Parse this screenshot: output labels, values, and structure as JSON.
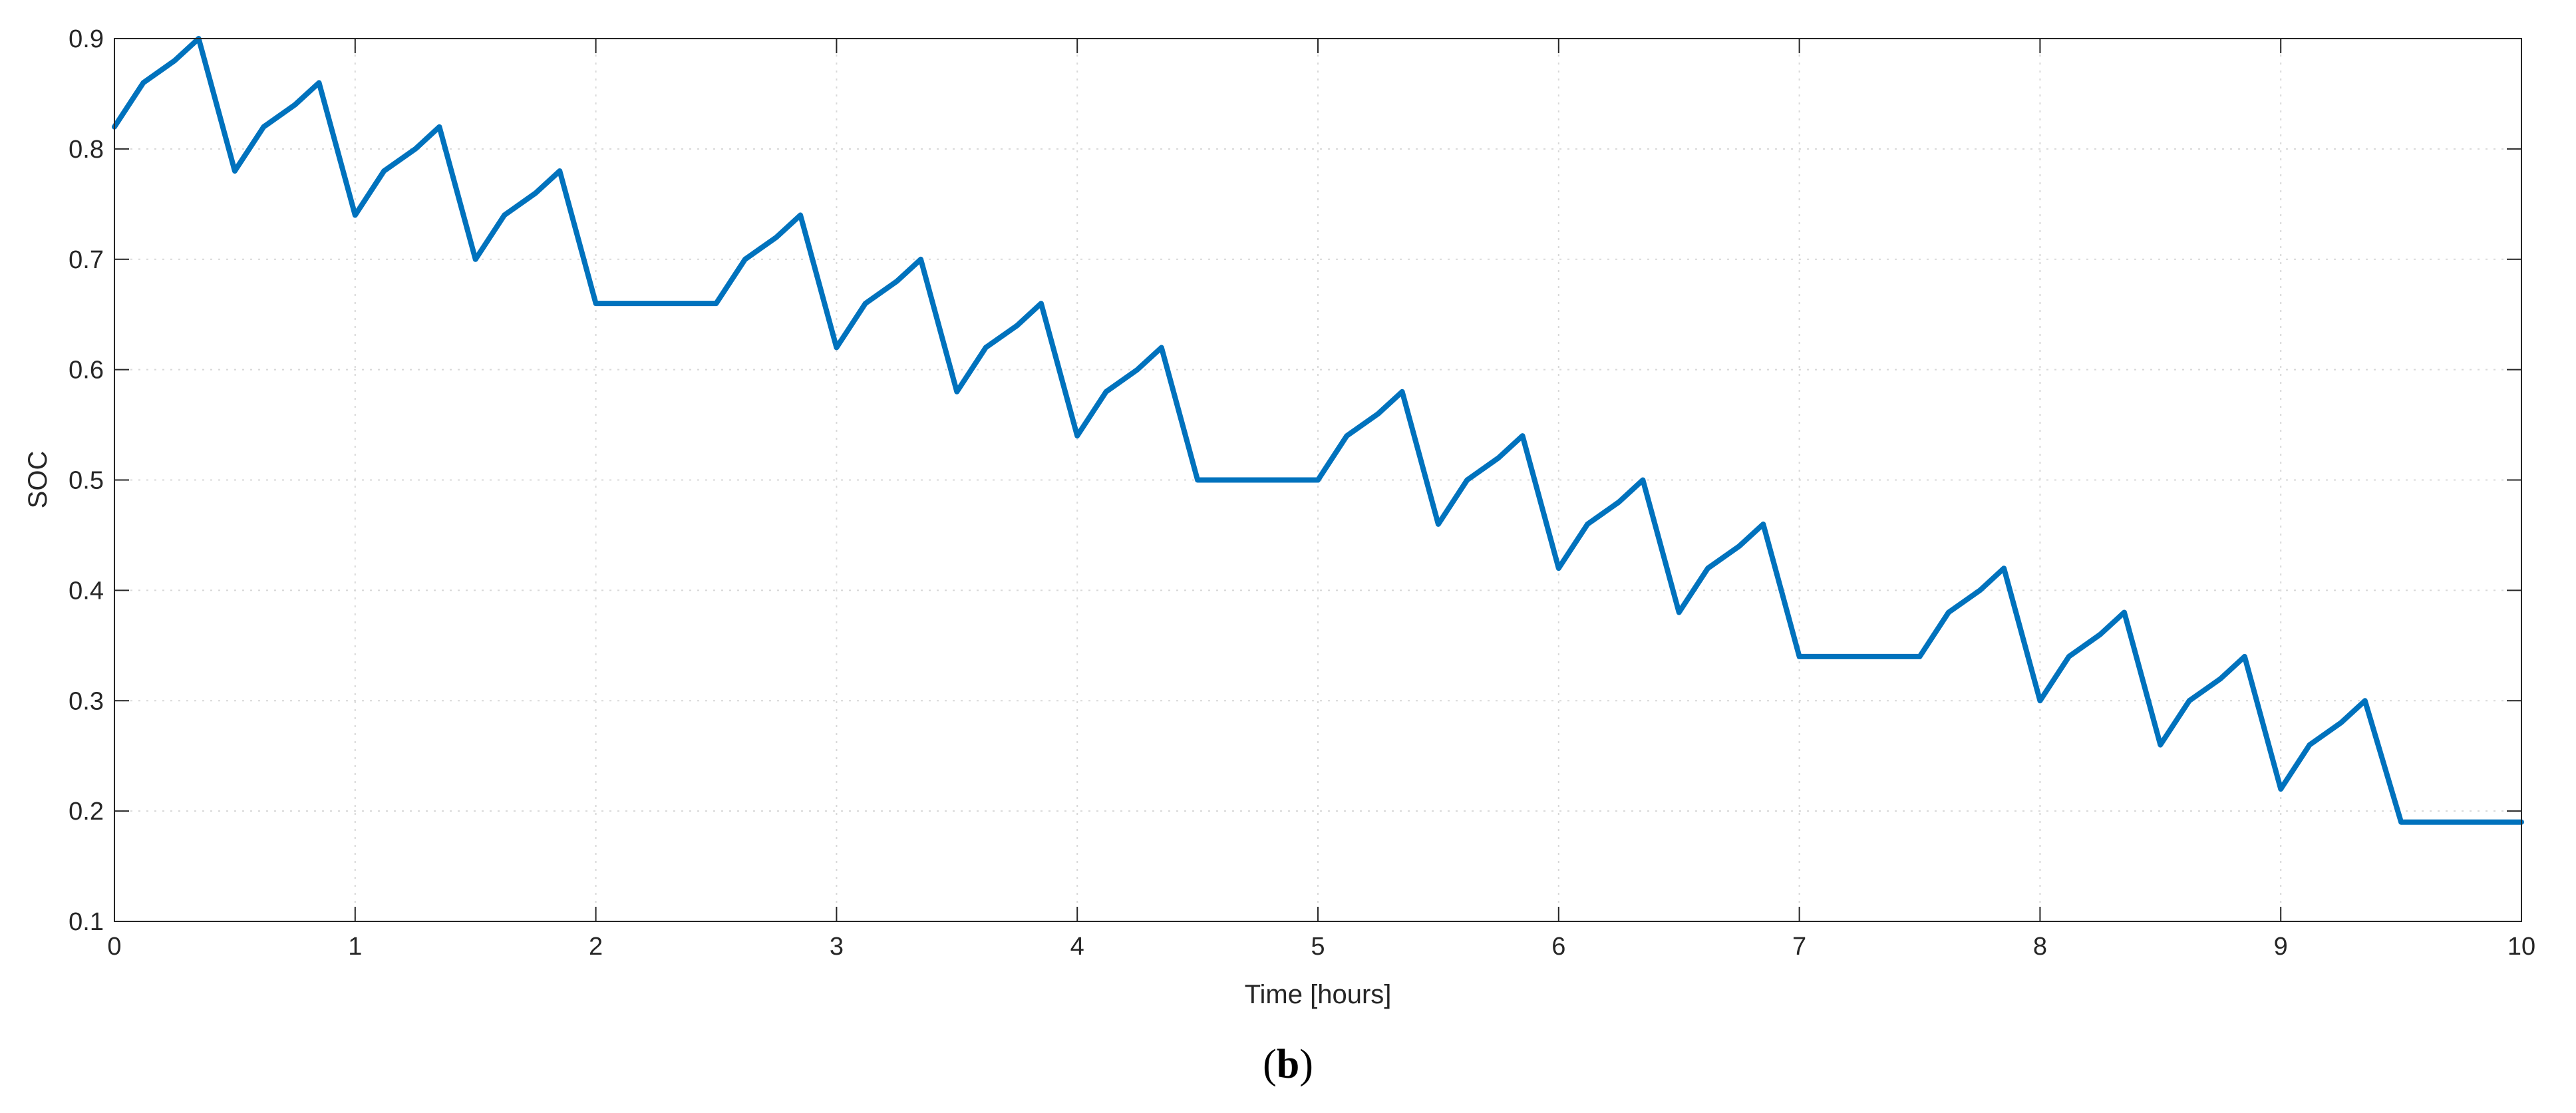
{
  "chart_data": {
    "type": "line",
    "xlabel": "Time [hours]",
    "ylabel": "SOC",
    "xlim": [
      0,
      10
    ],
    "ylim": [
      0.1,
      0.9
    ],
    "xticks": [
      "0",
      "1",
      "2",
      "3",
      "4",
      "5",
      "6",
      "7",
      "8",
      "9",
      "10"
    ],
    "yticks": [
      "0.1",
      "0.2",
      "0.3",
      "0.4",
      "0.5",
      "0.6",
      "0.7",
      "0.8",
      "0.9"
    ],
    "grid": true,
    "line_color": "#0072BD",
    "series": [
      {
        "x": [
          0,
          0.12,
          0.25,
          0.35,
          0.5,
          0.62,
          0.75,
          0.85,
          1.0,
          1.12,
          1.25,
          1.35,
          1.5,
          1.62,
          1.75,
          1.85,
          2.0,
          2.5,
          2.62,
          2.75,
          2.85,
          3.0,
          3.12,
          3.25,
          3.35,
          3.5,
          3.62,
          3.75,
          3.85,
          4.0,
          4.12,
          4.25,
          4.35,
          4.5,
          5.0,
          5.12,
          5.25,
          5.35,
          5.5,
          5.62,
          5.75,
          5.85,
          6.0,
          6.12,
          6.25,
          6.35,
          6.5,
          6.62,
          6.75,
          6.85,
          7.0,
          7.5,
          7.62,
          7.75,
          7.85,
          8.0,
          8.12,
          8.25,
          8.35,
          8.5,
          8.62,
          8.75,
          8.85,
          9.0,
          9.12,
          9.25,
          9.35,
          9.5,
          10.0
        ],
        "y": [
          0.82,
          0.86,
          0.88,
          0.9,
          0.78,
          0.82,
          0.84,
          0.86,
          0.74,
          0.78,
          0.8,
          0.82,
          0.7,
          0.74,
          0.76,
          0.78,
          0.66,
          0.66,
          0.7,
          0.72,
          0.74,
          0.62,
          0.66,
          0.68,
          0.7,
          0.58,
          0.62,
          0.64,
          0.66,
          0.54,
          0.58,
          0.6,
          0.62,
          0.5,
          0.5,
          0.54,
          0.56,
          0.58,
          0.46,
          0.5,
          0.52,
          0.54,
          0.42,
          0.46,
          0.48,
          0.5,
          0.38,
          0.42,
          0.44,
          0.46,
          0.34,
          0.34,
          0.38,
          0.4,
          0.42,
          0.3,
          0.34,
          0.36,
          0.38,
          0.26,
          0.3,
          0.32,
          0.34,
          0.22,
          0.26,
          0.28,
          0.3,
          0.19,
          0.19
        ]
      }
    ]
  },
  "panel_label": {
    "open": "(",
    "letter": "b",
    "close": ")"
  }
}
